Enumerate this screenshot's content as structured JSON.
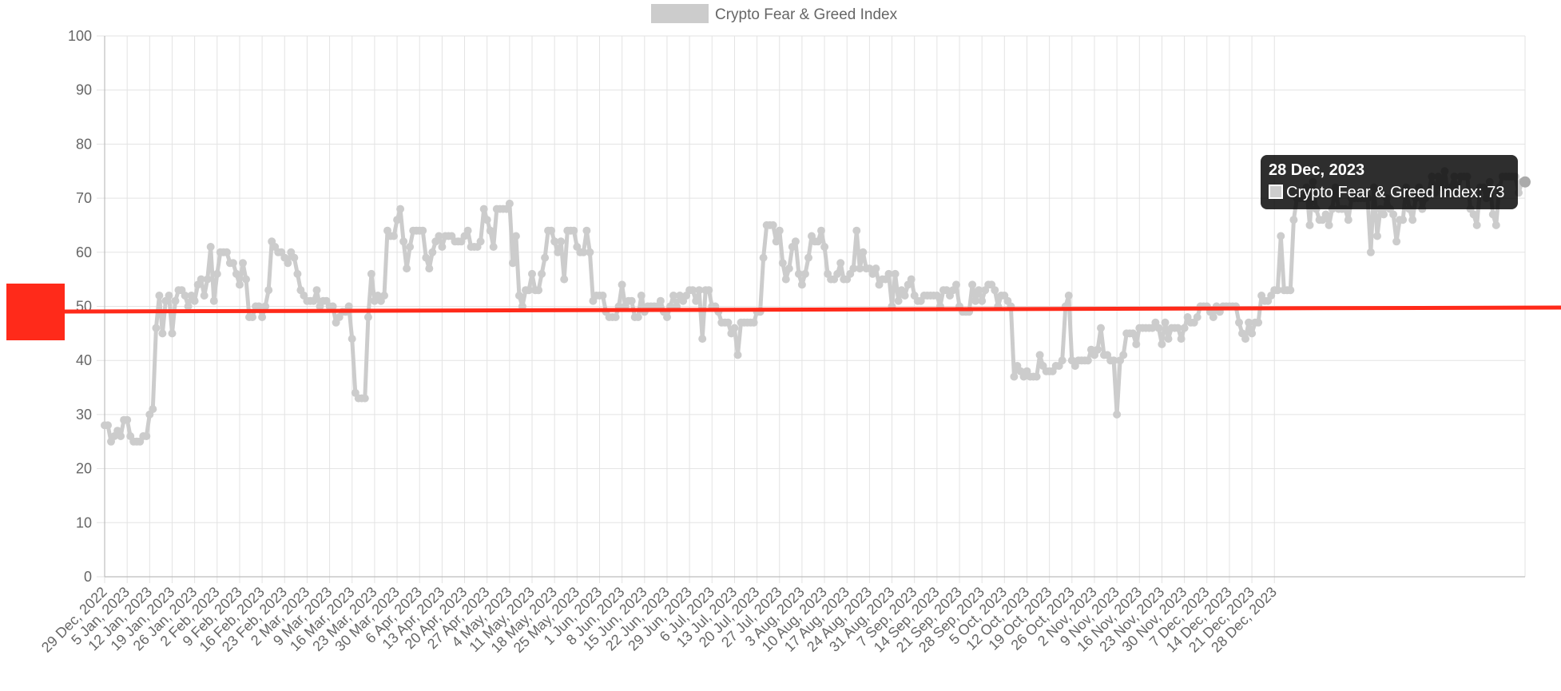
{
  "colors": {
    "line": "#cccccc",
    "overlay": "#ff2a1a",
    "tooltip_bg": "#000000",
    "grid": "#e3e3e3"
  },
  "tooltip": {
    "title": "28 Dec, 2023",
    "label": "Crypto Fear & Greed Index: 73"
  },
  "chart_data": {
    "type": "line",
    "title": "",
    "xlabel": "",
    "ylabel": "",
    "legend": {
      "position": "top",
      "entries": [
        "Crypto Fear & Greed Index"
      ]
    },
    "grid": true,
    "ylim": [
      0,
      100
    ],
    "yticks": [
      0,
      10,
      20,
      30,
      40,
      50,
      60,
      70,
      80,
      90,
      100
    ],
    "x_range": [
      "29 Dec, 2022",
      "28 Dec, 2023"
    ],
    "xticks": [
      "29 Dec, 2022",
      "5 Jan, 2023",
      "12 Jan, 2023",
      "19 Jan, 2023",
      "26 Jan, 2023",
      "2 Feb, 2023",
      "9 Feb, 2023",
      "16 Feb, 2023",
      "23 Feb, 2023",
      "2 Mar, 2023",
      "9 Mar, 2023",
      "16 Mar, 2023",
      "23 Mar, 2023",
      "30 Mar, 2023",
      "6 Apr, 2023",
      "13 Apr, 2023",
      "20 Apr, 2023",
      "27 Apr, 2023",
      "4 May, 2023",
      "11 May, 2023",
      "18 May, 2023",
      "25 May, 2023",
      "1 Jun, 2023",
      "8 Jun, 2023",
      "15 Jun, 2023",
      "22 Jun, 2023",
      "29 Jun, 2023",
      "6 Jul, 2023",
      "13 Jul, 2023",
      "20 Jul, 2023",
      "27 Jul, 2023",
      "3 Aug, 2023",
      "10 Aug, 2023",
      "17 Aug, 2023",
      "24 Aug, 2023",
      "31 Aug, 2023",
      "7 Sep, 2023",
      "14 Sep, 2023",
      "21 Sep, 2023",
      "28 Sep, 2023",
      "5 Oct, 2023",
      "12 Oct, 2023",
      "19 Oct, 2023",
      "26 Oct, 2023",
      "2 Nov, 2023",
      "9 Nov, 2023",
      "16 Nov, 2023",
      "23 Nov, 2023",
      "30 Nov, 2023",
      "7 Dec, 2023",
      "14 Dec, 2023",
      "21 Dec, 2023",
      "28 Dec, 2023"
    ],
    "series": [
      {
        "name": "Crypto Fear & Greed Index",
        "start_date": "29 Dec, 2022",
        "interval_days": 1,
        "values": [
          28,
          28,
          25,
          26,
          27,
          26,
          29,
          29,
          26,
          25,
          25,
          25,
          26,
          26,
          30,
          31,
          46,
          52,
          45,
          51,
          52,
          45,
          51,
          53,
          53,
          52,
          50,
          52,
          51,
          54,
          55,
          52,
          55,
          61,
          51,
          56,
          60,
          60,
          60,
          58,
          58,
          56,
          54,
          58,
          55,
          48,
          48,
          50,
          50,
          48,
          50,
          53,
          62,
          61,
          60,
          60,
          59,
          58,
          60,
          59,
          56,
          53,
          52,
          51,
          51,
          51,
          53,
          50,
          51,
          51,
          50,
          50,
          47,
          48,
          49,
          49,
          50,
          44,
          34,
          33,
          33,
          33,
          48,
          56,
          51,
          52,
          51,
          52,
          64,
          63,
          63,
          66,
          68,
          62,
          57,
          61,
          64,
          64,
          64,
          64,
          59,
          57,
          60,
          62,
          63,
          61,
          63,
          63,
          63,
          62,
          62,
          62,
          63,
          64,
          61,
          61,
          61,
          62,
          68,
          66,
          64,
          61,
          68,
          68,
          68,
          68,
          69,
          58,
          63,
          52,
          50,
          53,
          53,
          56,
          53,
          53,
          56,
          59,
          64,
          64,
          62,
          60,
          62,
          55,
          64,
          64,
          64,
          61,
          60,
          60,
          64,
          60,
          51,
          52,
          52,
          52,
          49,
          48,
          48,
          48,
          50,
          54,
          50,
          51,
          51,
          48,
          48,
          52,
          49,
          50,
          50,
          50,
          50,
          51,
          49,
          48,
          50,
          52,
          50,
          52,
          51,
          52,
          53,
          53,
          51,
          53,
          44,
          53,
          53,
          50,
          50,
          49,
          47,
          47,
          47,
          45,
          46,
          41,
          47,
          47,
          47,
          47,
          47,
          49,
          49,
          59,
          65,
          65,
          65,
          62,
          64,
          58,
          55,
          57,
          61,
          62,
          56,
          54,
          56,
          59,
          63,
          62,
          62,
          64,
          61,
          56,
          55,
          55,
          56,
          58,
          55,
          55,
          56,
          57,
          64,
          57,
          60,
          57,
          57,
          56,
          57,
          54,
          55,
          55,
          56,
          50,
          56,
          51,
          53,
          52,
          54,
          55,
          52,
          51,
          51,
          52,
          52,
          52,
          52,
          52,
          50,
          53,
          53,
          52,
          53,
          54,
          50,
          49,
          49,
          49,
          54,
          51,
          53,
          51,
          53,
          54,
          54,
          53,
          50,
          52,
          52,
          51,
          50,
          37,
          39,
          38,
          37,
          38,
          37,
          37,
          37,
          41,
          39,
          38,
          38,
          38,
          39,
          39,
          40,
          50,
          52,
          40,
          39,
          40,
          40,
          40,
          40,
          42,
          41,
          42,
          46,
          41,
          41,
          40,
          40,
          30,
          40,
          41,
          45,
          45,
          45,
          43,
          46,
          46,
          46,
          46,
          46,
          47,
          46,
          43,
          47,
          44,
          46,
          46,
          46,
          44,
          46,
          48,
          47,
          47,
          48,
          50,
          50,
          50,
          49,
          48,
          50,
          49,
          50,
          50,
          50,
          50,
          50,
          47,
          45,
          44,
          47,
          45,
          47,
          47,
          52,
          51,
          51,
          52,
          53,
          53,
          63,
          53,
          53,
          53,
          66,
          70,
          70,
          70,
          72,
          65,
          73,
          68,
          66,
          66,
          67,
          65,
          68,
          72,
          68,
          68,
          68,
          66,
          70,
          70,
          70,
          70,
          70,
          70,
          60,
          72,
          63,
          68,
          67,
          70,
          68,
          67,
          62,
          66,
          66,
          72,
          68,
          66,
          70,
          72,
          68,
          70,
          71,
          74,
          71,
          74,
          72,
          75,
          71,
          72,
          74,
          71,
          74,
          74,
          74,
          68,
          67,
          65,
          72,
          72,
          70,
          73,
          67,
          65,
          72,
          74,
          74,
          74,
          74,
          74,
          71,
          73,
          73
        ]
      }
    ]
  }
}
